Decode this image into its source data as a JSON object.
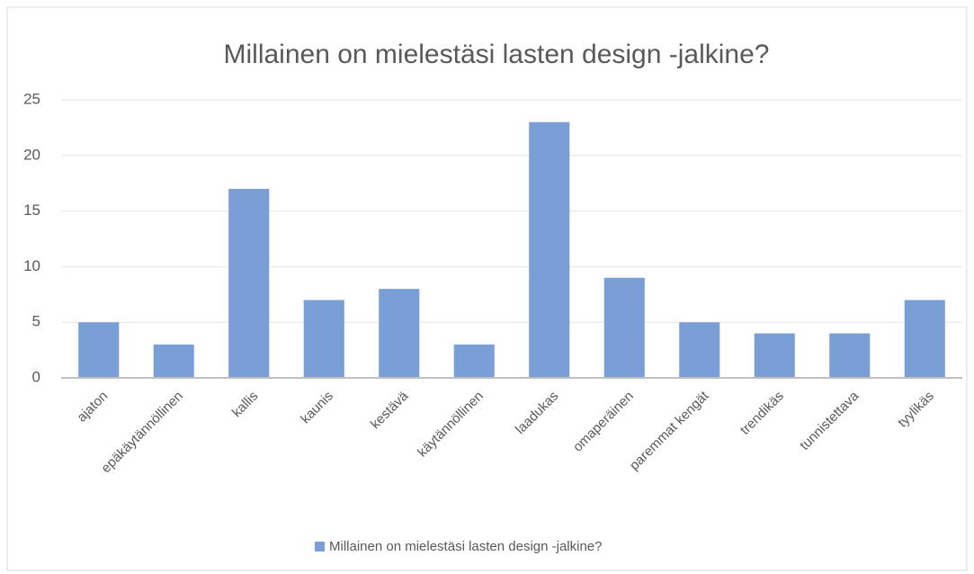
{
  "chart_data": {
    "type": "bar",
    "title": "Millainen on mielestäsi lasten design -jalkine?",
    "categories": [
      "ajaton",
      "epäkäytännöllinen",
      "kallis",
      "kaunis",
      "kestävä",
      "käytännöllinen",
      "laadukas",
      "omaperäinen",
      "paremmat kengät",
      "trendikäs",
      "tunnistettava",
      "tyylikäs"
    ],
    "series": [
      {
        "name": "Millainen on mielestäsi lasten design -jalkine?",
        "color": "#7a9fd7",
        "values": [
          5,
          3,
          17,
          7,
          8,
          3,
          23,
          9,
          5,
          4,
          4,
          7
        ]
      }
    ],
    "ylim": [
      0,
      25
    ],
    "yticks": [
      0,
      5,
      10,
      15,
      20,
      25
    ],
    "grid": true,
    "legend": "bottom"
  }
}
